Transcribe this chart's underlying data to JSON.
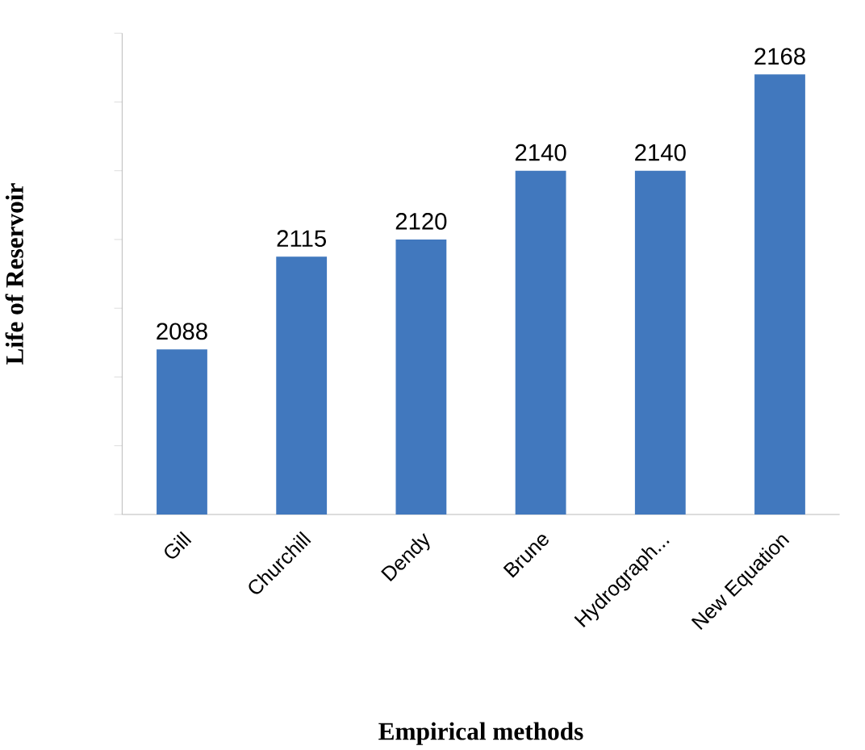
{
  "chart_data": {
    "type": "bar",
    "xlabel": "Empirical methods",
    "ylabel": "Life of Reservoir",
    "categories": [
      "Gill",
      "Churchill",
      "Dendy",
      "Brune",
      "Hydrograph...",
      "New Equation"
    ],
    "values": [
      2088,
      2115,
      2120,
      2140,
      2140,
      2168
    ],
    "color": "#4178be",
    "ylim": [
      2040,
      2180
    ],
    "yticks": [
      {
        "value": 2040,
        "label": null
      },
      {
        "value": 2060,
        "label": null
      },
      {
        "value": 2080,
        "label": null
      },
      {
        "value": 2100,
        "label": null
      },
      {
        "value": 2120,
        "label": null
      },
      {
        "value": 2140,
        "label": null
      },
      {
        "value": 2160,
        "label": null
      },
      {
        "value": 2180,
        "label": null
      }
    ],
    "tick_labels": "x",
    "data_labels": true,
    "grid": false
  }
}
